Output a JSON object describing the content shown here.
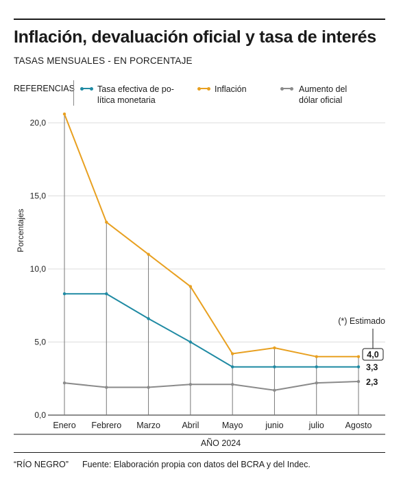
{
  "header": {
    "title": "Inflación, devaluación oficial y tasa de interés",
    "subtitle": "TASAS MENSUALES - EN PORCENTAJE"
  },
  "legend": {
    "title": "REFERENCIAS",
    "items": [
      {
        "line1": "Tasa efectiva de po-",
        "line2": "lítica monetaria",
        "color": "#1f8aa3"
      },
      {
        "line1": "Inflación",
        "line2": "",
        "color": "#e8a020"
      },
      {
        "line1": "Aumento del",
        "line2": "dólar oficial",
        "color": "#8a8a8a"
      }
    ]
  },
  "chart_data": {
    "type": "line",
    "categories": [
      "Enero",
      "Febrero",
      "Marzo",
      "Abril",
      "Mayo",
      "junio",
      "julio",
      "Agosto"
    ],
    "ylabel": "Porcentajes",
    "xlabel": "AÑO 2024",
    "ylim": [
      0,
      20
    ],
    "yticks": [
      "0,0",
      "5,0",
      "10,0",
      "15,0",
      "20,0"
    ],
    "grid": true,
    "annotation": "(*) Estimado",
    "end_labels": [
      "4,0",
      "3,3",
      "2,3"
    ],
    "series": [
      {
        "name": "Tasa efectiva de política monetaria",
        "color": "#1f8aa3",
        "values": [
          8.3,
          8.3,
          6.6,
          5.0,
          3.3,
          3.3,
          3.3,
          3.3
        ]
      },
      {
        "name": "Inflación",
        "color": "#e8a020",
        "values": [
          20.6,
          13.2,
          11.0,
          8.8,
          4.2,
          4.6,
          4.0,
          4.0
        ]
      },
      {
        "name": "Aumento del dólar oficial",
        "color": "#8a8a8a",
        "values": [
          2.2,
          1.9,
          1.9,
          2.1,
          2.1,
          1.7,
          2.2,
          2.3
        ]
      }
    ]
  },
  "footer": {
    "source_brand": "“RÍO NEGRO”",
    "source_text": "Fuente: Elaboración propia con datos del BCRA y del Indec."
  }
}
